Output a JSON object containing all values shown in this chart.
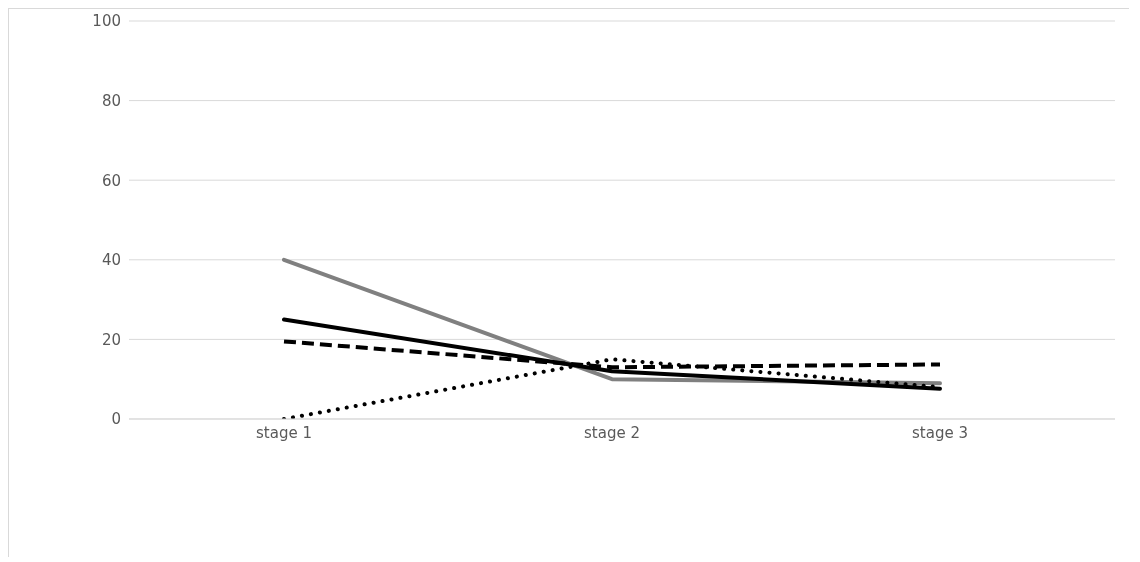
{
  "chart_data": {
    "type": "line",
    "categories": [
      "stage 1",
      "stage 2",
      "stage 3"
    ],
    "series": [
      {
        "color": "#808080",
        "line_style": "solid",
        "values": [
          40,
          10,
          9
        ]
      },
      {
        "color": "#000000",
        "line_style": "solid",
        "values": [
          25,
          12,
          7.6
        ]
      },
      {
        "color": "#000000",
        "line_style": "dashed",
        "values": [
          19.5,
          13,
          13.7
        ]
      },
      {
        "color": "#000000",
        "line_style": "dotted",
        "values": [
          0,
          15,
          8
        ]
      }
    ],
    "ylim": [
      0,
      100
    ],
    "yticks": [
      0,
      20,
      40,
      60,
      80,
      100
    ],
    "grid": "y",
    "legend": false,
    "marker": "none"
  }
}
